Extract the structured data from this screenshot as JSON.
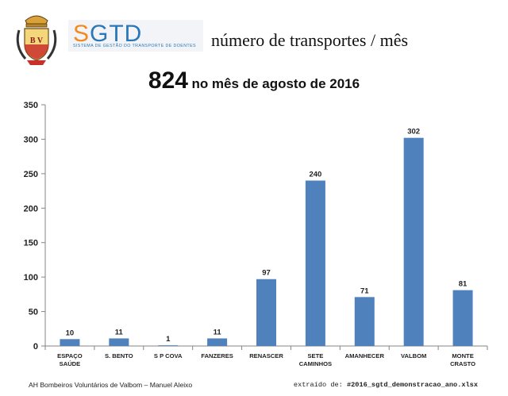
{
  "header": {
    "logo_text_s": "S",
    "logo_text_rest": "GTD",
    "logo_subtitle": "SISTEMA DE GESTÃO DO TRANSPORTE DE DOENTES",
    "crest_letters": "B V",
    "page_subtitle": "número de transportes / mês",
    "total": "824",
    "headline_rest": "no mês de agosto de 2016"
  },
  "footer": {
    "left": "AH Bombeiros Voluntários de Valbom – Manuel Aleixo",
    "right_prefix": "extraído de: ",
    "right_file": "#2016_sgtd_demonstracao_ano.xlsx"
  },
  "colors": {
    "bar": "#4f81bd",
    "logo_orange": "#f28a1f",
    "logo_blue": "#2b78b8"
  },
  "chart_data": {
    "type": "bar",
    "categories": [
      [
        "ESPAÇO",
        "SAÚDE"
      ],
      [
        "S. BENTO"
      ],
      [
        "S P COVA"
      ],
      [
        "FANZERES"
      ],
      [
        "RENASCER"
      ],
      [
        "SETE",
        "CAMINHOS"
      ],
      [
        "AMANHECER"
      ],
      [
        "VALBOM"
      ],
      [
        "MONTE",
        "CRASTO"
      ]
    ],
    "values": [
      10,
      11,
      1,
      11,
      97,
      240,
      71,
      302,
      81
    ],
    "ylim": [
      0,
      350
    ],
    "yticks": [
      "0",
      "50",
      "100",
      "150",
      "200",
      "250",
      "300",
      "350"
    ],
    "ytick_values": [
      0,
      50,
      100,
      150,
      200,
      250,
      300,
      350
    ],
    "data_labels": [
      "10",
      "11",
      "1",
      "11",
      "97",
      "240",
      "71",
      "302",
      "81"
    ],
    "grid": false,
    "legend": "none"
  }
}
